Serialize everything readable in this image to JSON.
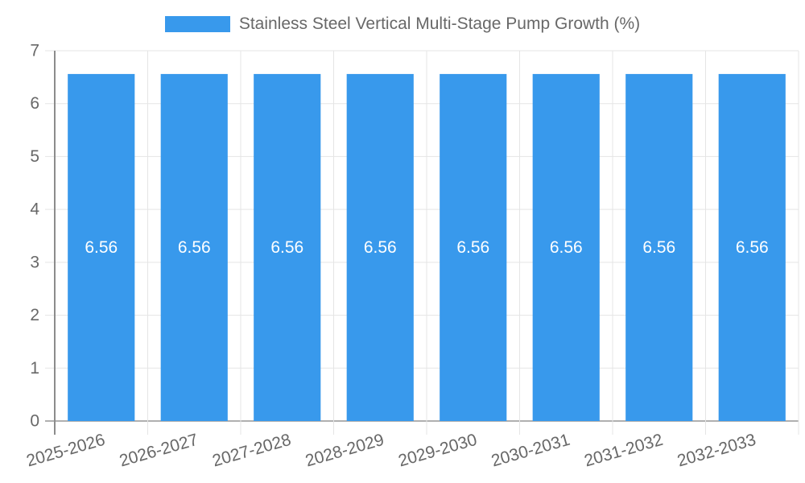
{
  "chart_data": {
    "type": "bar",
    "categories": [
      "2025-2026",
      "2026-2027",
      "2027-2028",
      "2028-2029",
      "2029-2030",
      "2030-2031",
      "2031-2032",
      "2032-2033"
    ],
    "series": [
      {
        "name": "Stainless Steel Vertical Multi-Stage Pump Growth (%)",
        "values": [
          6.56,
          6.56,
          6.56,
          6.56,
          6.56,
          6.56,
          6.56,
          6.56
        ],
        "value_labels": [
          "6.56",
          "6.56",
          "6.56",
          "6.56",
          "6.56",
          "6.56",
          "6.56",
          "6.56"
        ]
      }
    ],
    "title": "",
    "xlabel": "",
    "ylabel": "",
    "ylim": [
      0,
      7
    ],
    "yticks": [
      0,
      1,
      2,
      3,
      4,
      5,
      6,
      7
    ],
    "grid": true,
    "legend_position": "top",
    "colors": {
      "bar": "#3899EC",
      "bar_label": "#ffffff",
      "grid": "#e5e5e5",
      "x_axis_line": "#b0b0b0",
      "y_axis_line": "#8c8c8c",
      "tick_text": "#686868"
    }
  }
}
